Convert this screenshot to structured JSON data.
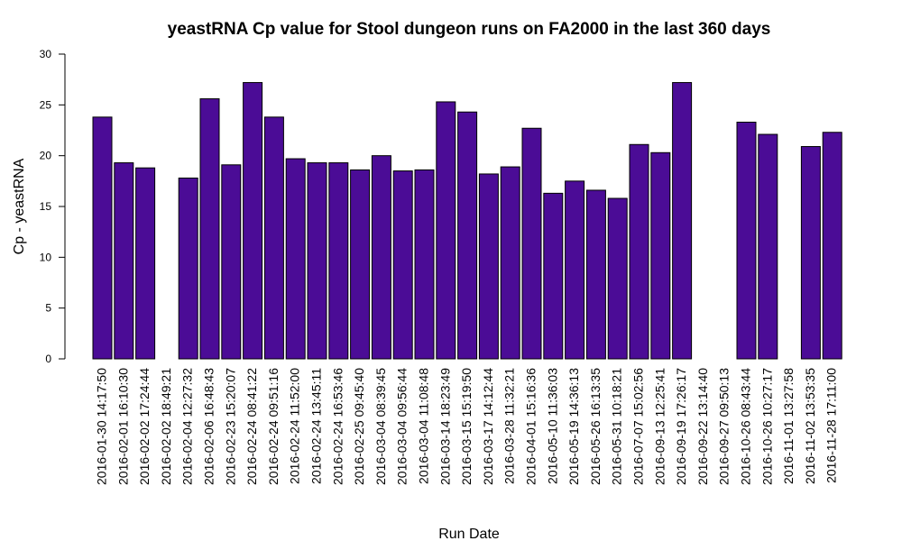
{
  "chart_data": {
    "type": "bar",
    "title": "yeastRNA Cp value for Stool dungeon runs on FA2000 in the last 360 days",
    "xlabel": "Run Date",
    "ylabel": "Cp - yeastRNA",
    "ylim": [
      0,
      30
    ],
    "yticks": [
      0,
      5,
      10,
      15,
      20,
      25,
      30
    ],
    "bar_color": "#4B0C96",
    "grid": false,
    "categories": [
      "2016-01-30 14:17:50",
      "2016-02-01 16:10:30",
      "2016-02-02 17:24:44",
      "2016-02-02 18:49:21",
      "2016-02-04 12:27:32",
      "2016-02-06 16:48:43",
      "2016-02-23 15:20:07",
      "2016-02-24 08:41:22",
      "2016-02-24 09:51:16",
      "2016-02-24 11:52:00",
      "2016-02-24 13:45:11",
      "2016-02-24 16:53:46",
      "2016-02-25 09:45:40",
      "2016-03-04 08:39:45",
      "2016-03-04 09:56:44",
      "2016-03-04 11:08:48",
      "2016-03-14 18:23:49",
      "2016-03-15 15:19:50",
      "2016-03-17 14:12:44",
      "2016-03-28 11:32:21",
      "2016-04-01 15:16:36",
      "2016-05-10 11:36:03",
      "2016-05-19 14:36:13",
      "2016-05-26 16:13:35",
      "2016-05-31 10:18:21",
      "2016-07-07 15:02:56",
      "2016-09-13 12:25:41",
      "2016-09-19 17:26:17",
      "2016-09-22 13:14:40",
      "2016-09-27 09:50:13",
      "2016-10-26 08:43:44",
      "2016-10-26 10:27:17",
      "2016-11-01 13:27:58",
      "2016-11-02 13:53:35",
      "2016-11-28 17:11:00"
    ],
    "values": [
      23.8,
      19.3,
      18.8,
      null,
      17.8,
      25.6,
      19.1,
      27.2,
      23.8,
      19.7,
      19.3,
      19.3,
      18.6,
      20.0,
      18.5,
      18.6,
      25.3,
      24.3,
      18.2,
      18.9,
      22.7,
      16.3,
      17.5,
      16.6,
      15.8,
      21.1,
      20.3,
      27.2,
      null,
      null,
      23.3,
      22.1,
      null,
      20.9,
      22.3
    ]
  }
}
